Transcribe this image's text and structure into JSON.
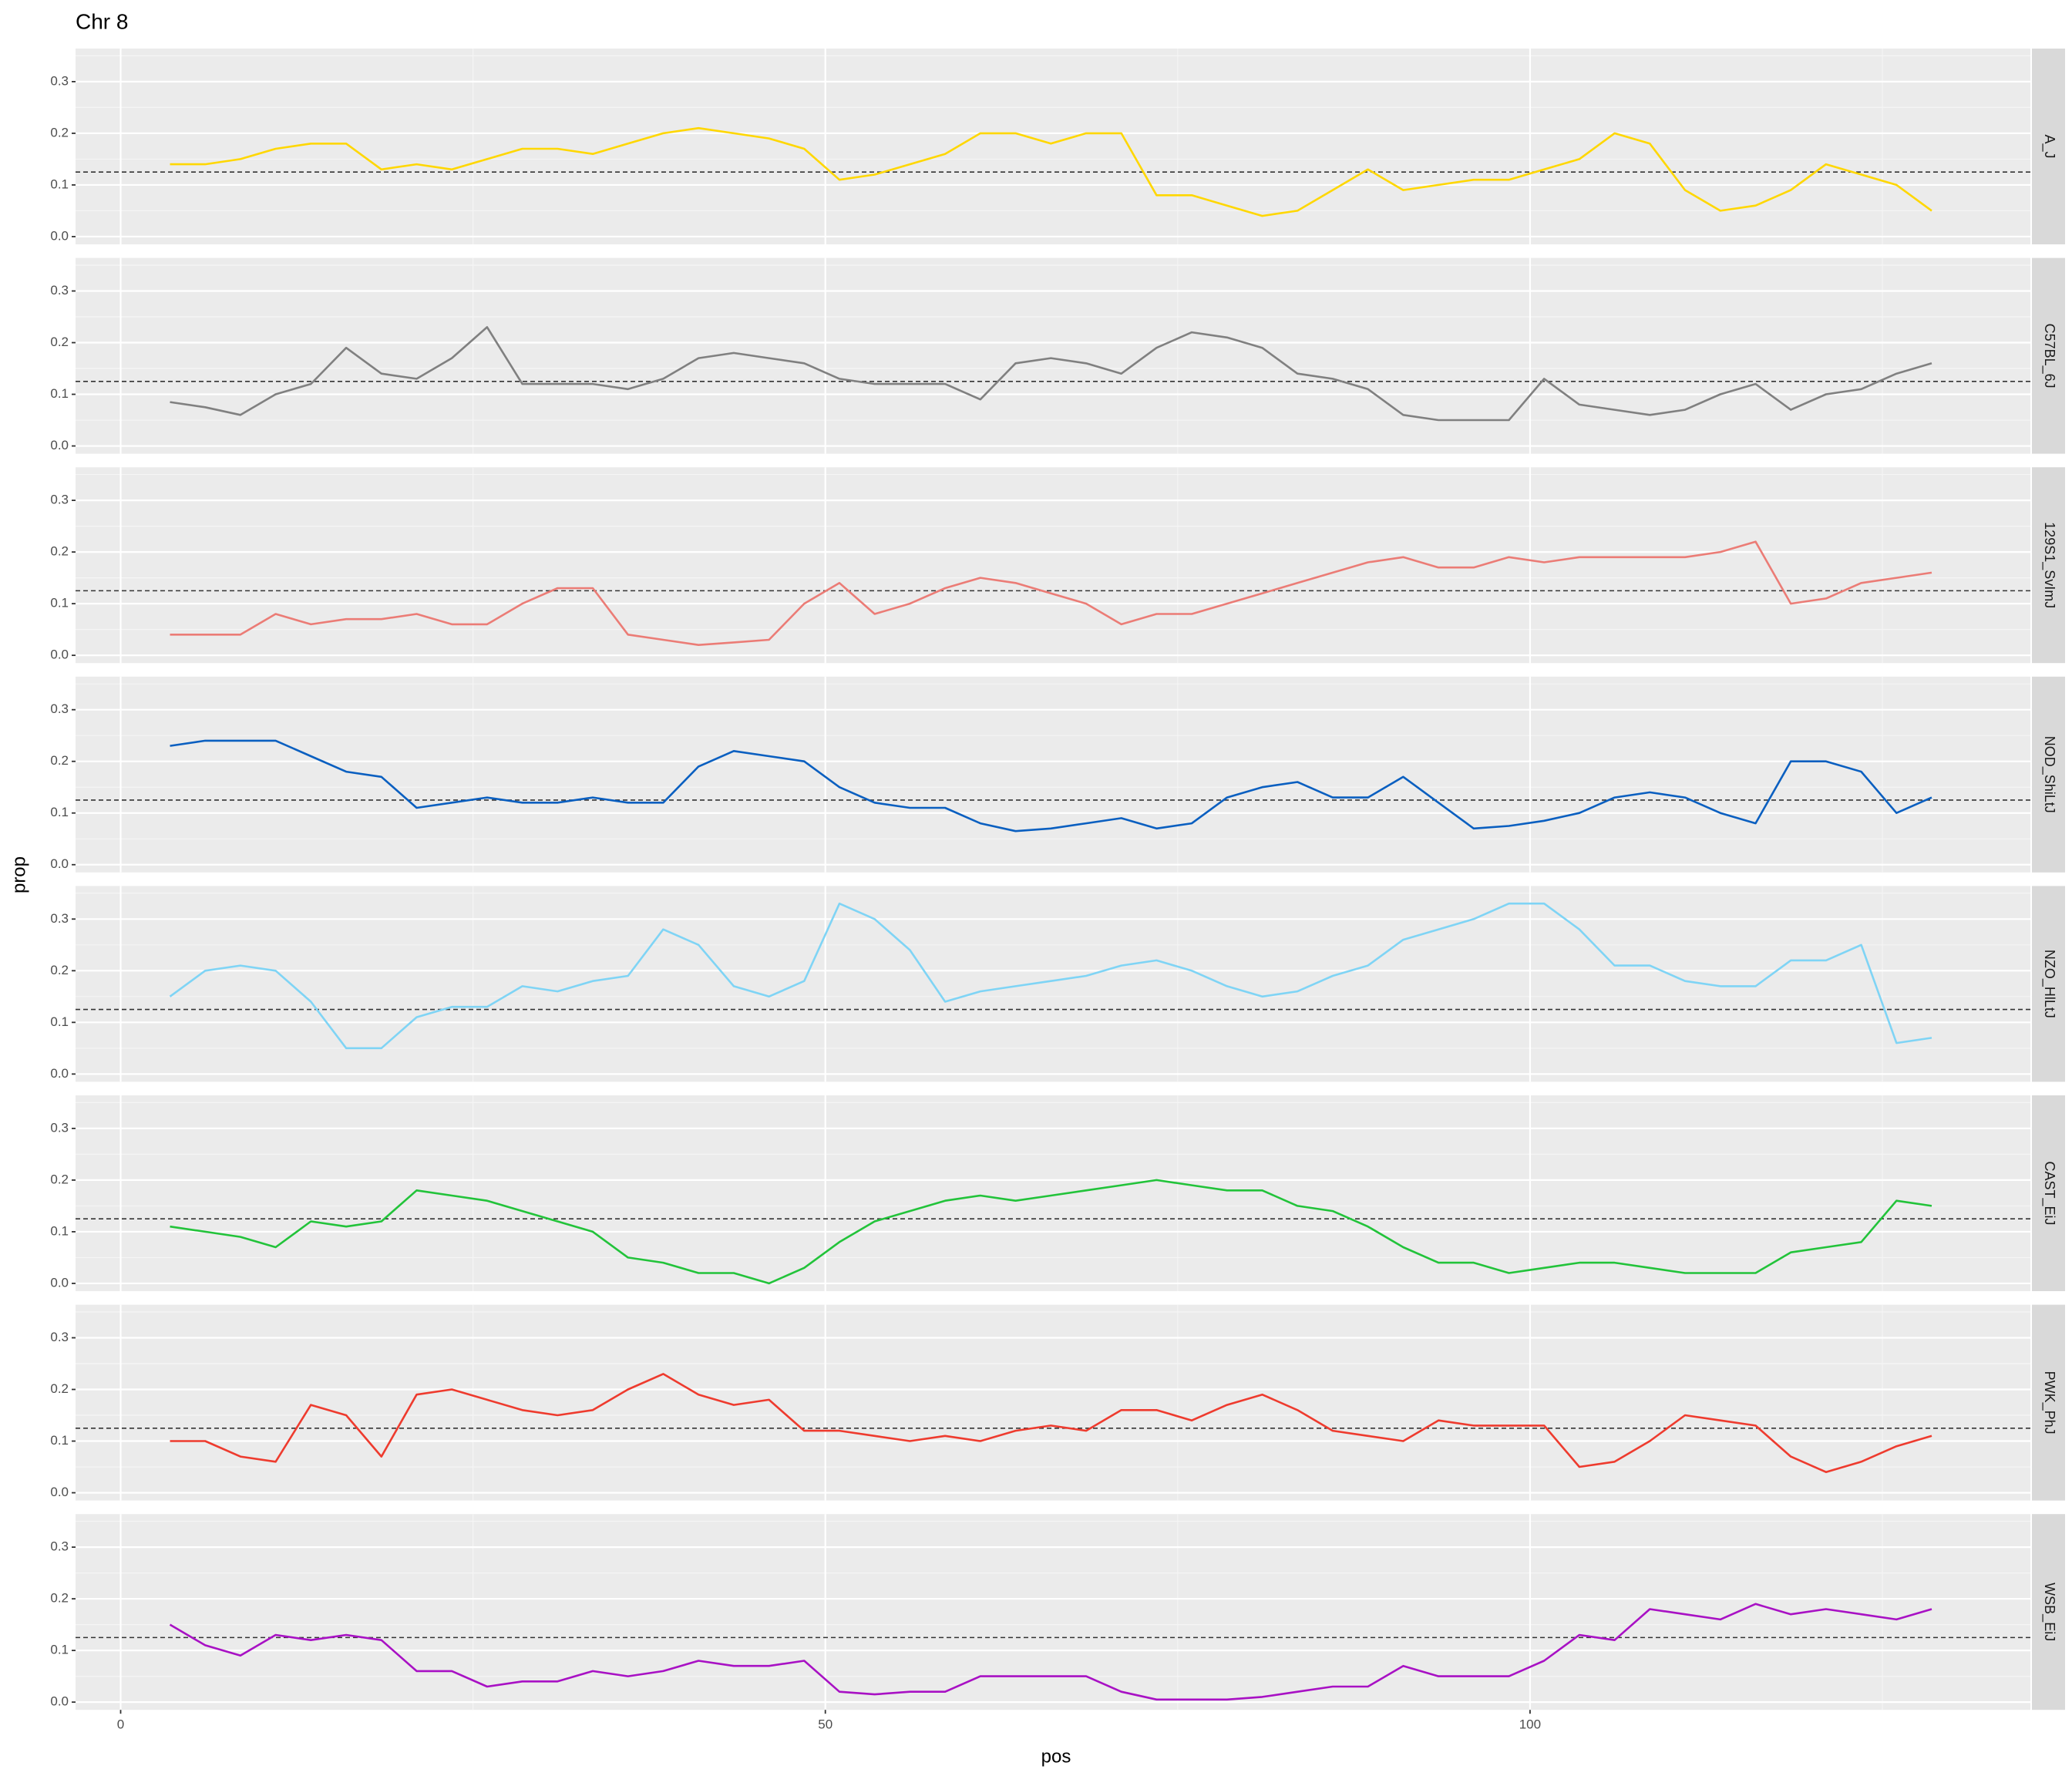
{
  "chart_data": {
    "type": "line",
    "title": "Chr 8",
    "x_label": "pos",
    "y_label": "prop",
    "xlim": [
      -3.2,
      135.5
    ],
    "xticks": [
      0,
      50,
      100
    ],
    "ylim": [
      -0.015,
      0.364
    ],
    "yticks": [
      {
        "value": 0,
        "label": "0.0"
      },
      0.1,
      0.2,
      0.3
    ],
    "hline": 0.125,
    "grid": true,
    "x": [
      3.5,
      6,
      8.5,
      11,
      13.5,
      16,
      18.5,
      21,
      23.5,
      26,
      28.5,
      31,
      33.5,
      36,
      38.5,
      41,
      43.5,
      46,
      48.5,
      51,
      53.5,
      56,
      58.5,
      61,
      63.5,
      66,
      68.5,
      71,
      73.5,
      76,
      78.5,
      81,
      83.5,
      86,
      88.5,
      91,
      93.5,
      96,
      98.5,
      101,
      103.5,
      106,
      108.5,
      111,
      113.5,
      116,
      118.5,
      121,
      123.5,
      126,
      128.5
    ],
    "series": [
      {
        "name": "A_J",
        "color": "#FFD700",
        "values": [
          0.14,
          0.14,
          0.15,
          0.17,
          0.18,
          0.18,
          0.13,
          0.14,
          0.13,
          0.15,
          0.17,
          0.17,
          0.16,
          0.18,
          0.2,
          0.21,
          0.2,
          0.19,
          0.17,
          0.11,
          0.12,
          0.14,
          0.16,
          0.2,
          0.2,
          0.18,
          0.2,
          0.2,
          0.08,
          0.08,
          0.06,
          0.04,
          0.05,
          0.09,
          0.13,
          0.09,
          0.1,
          0.11,
          0.11,
          0.13,
          0.15,
          0.2,
          0.18,
          0.09,
          0.05,
          0.06,
          0.09,
          0.14,
          0.12,
          0.1,
          0.05
        ]
      },
      {
        "name": "C57BL_6J",
        "color": "#808080",
        "values": [
          0.085,
          0.075,
          0.06,
          0.1,
          0.12,
          0.19,
          0.14,
          0.13,
          0.17,
          0.23,
          0.12,
          0.12,
          0.12,
          0.11,
          0.13,
          0.17,
          0.18,
          0.17,
          0.16,
          0.13,
          0.12,
          0.12,
          0.12,
          0.09,
          0.16,
          0.17,
          0.16,
          0.14,
          0.19,
          0.22,
          0.21,
          0.19,
          0.14,
          0.13,
          0.11,
          0.06,
          0.05,
          0.05,
          0.05,
          0.13,
          0.08,
          0.07,
          0.06,
          0.07,
          0.1,
          0.12,
          0.07,
          0.1,
          0.11,
          0.14,
          0.16
        ]
      },
      {
        "name": "129S1_SvImJ",
        "color": "#EB7C76",
        "values": [
          0.04,
          0.04,
          0.04,
          0.08,
          0.06,
          0.07,
          0.07,
          0.08,
          0.06,
          0.06,
          0.1,
          0.13,
          0.13,
          0.04,
          0.03,
          0.02,
          0.025,
          0.03,
          0.1,
          0.14,
          0.08,
          0.1,
          0.13,
          0.15,
          0.14,
          0.12,
          0.1,
          0.06,
          0.08,
          0.08,
          0.1,
          0.12,
          0.14,
          0.16,
          0.18,
          0.19,
          0.17,
          0.17,
          0.19,
          0.18,
          0.19,
          0.19,
          0.19,
          0.19,
          0.2,
          0.22,
          0.1,
          0.11,
          0.14,
          0.15,
          0.16
        ]
      },
      {
        "name": "NOD_ShiLtJ",
        "color": "#0A5FC0",
        "values": [
          0.23,
          0.24,
          0.24,
          0.24,
          0.21,
          0.18,
          0.17,
          0.11,
          0.12,
          0.13,
          0.12,
          0.12,
          0.13,
          0.12,
          0.12,
          0.19,
          0.22,
          0.21,
          0.2,
          0.15,
          0.12,
          0.11,
          0.11,
          0.08,
          0.065,
          0.07,
          0.08,
          0.09,
          0.07,
          0.08,
          0.13,
          0.15,
          0.16,
          0.13,
          0.13,
          0.17,
          0.12,
          0.07,
          0.075,
          0.085,
          0.1,
          0.13,
          0.14,
          0.13,
          0.1,
          0.08,
          0.2,
          0.2,
          0.18,
          0.1,
          0.13
        ]
      },
      {
        "name": "NZO_HlLtJ",
        "color": "#7FD4F5",
        "values": [
          0.15,
          0.2,
          0.21,
          0.2,
          0.14,
          0.05,
          0.05,
          0.11,
          0.13,
          0.13,
          0.17,
          0.16,
          0.18,
          0.19,
          0.28,
          0.25,
          0.17,
          0.15,
          0.18,
          0.33,
          0.3,
          0.24,
          0.14,
          0.16,
          0.17,
          0.18,
          0.19,
          0.21,
          0.22,
          0.2,
          0.17,
          0.15,
          0.16,
          0.19,
          0.21,
          0.26,
          0.28,
          0.3,
          0.33,
          0.33,
          0.28,
          0.21,
          0.21,
          0.18,
          0.17,
          0.17,
          0.22,
          0.22,
          0.25,
          0.06,
          0.07
        ]
      },
      {
        "name": "CAST_EiJ",
        "color": "#22C33A",
        "values": [
          0.11,
          0.1,
          0.09,
          0.07,
          0.12,
          0.11,
          0.12,
          0.18,
          0.17,
          0.16,
          0.14,
          0.12,
          0.1,
          0.05,
          0.04,
          0.02,
          0.02,
          0.0,
          0.03,
          0.08,
          0.12,
          0.14,
          0.16,
          0.17,
          0.16,
          0.17,
          0.18,
          0.19,
          0.2,
          0.19,
          0.18,
          0.18,
          0.15,
          0.14,
          0.11,
          0.07,
          0.04,
          0.04,
          0.02,
          0.03,
          0.04,
          0.04,
          0.03,
          0.02,
          0.02,
          0.02,
          0.06,
          0.07,
          0.08,
          0.16,
          0.15
        ]
      },
      {
        "name": "PWK_PhJ",
        "color": "#EE3B2E",
        "values": [
          0.1,
          0.1,
          0.07,
          0.06,
          0.17,
          0.15,
          0.07,
          0.19,
          0.2,
          0.18,
          0.16,
          0.15,
          0.16,
          0.2,
          0.23,
          0.19,
          0.17,
          0.18,
          0.12,
          0.12,
          0.11,
          0.1,
          0.11,
          0.1,
          0.12,
          0.13,
          0.12,
          0.16,
          0.16,
          0.14,
          0.17,
          0.19,
          0.16,
          0.12,
          0.11,
          0.1,
          0.14,
          0.13,
          0.13,
          0.13,
          0.05,
          0.06,
          0.1,
          0.15,
          0.14,
          0.13,
          0.07,
          0.04,
          0.06,
          0.09,
          0.11
        ]
      },
      {
        "name": "WSB_EiJ",
        "color": "#A811C4",
        "values": [
          0.15,
          0.11,
          0.09,
          0.13,
          0.12,
          0.13,
          0.12,
          0.06,
          0.06,
          0.03,
          0.04,
          0.04,
          0.06,
          0.05,
          0.06,
          0.08,
          0.07,
          0.07,
          0.08,
          0.02,
          0.015,
          0.02,
          0.02,
          0.05,
          0.05,
          0.05,
          0.05,
          0.02,
          0.005,
          0.005,
          0.005,
          0.01,
          0.02,
          0.03,
          0.03,
          0.07,
          0.05,
          0.05,
          0.05,
          0.08,
          0.13,
          0.12,
          0.18,
          0.17,
          0.16,
          0.19,
          0.17,
          0.18,
          0.17,
          0.16,
          0.18
        ]
      }
    ]
  }
}
